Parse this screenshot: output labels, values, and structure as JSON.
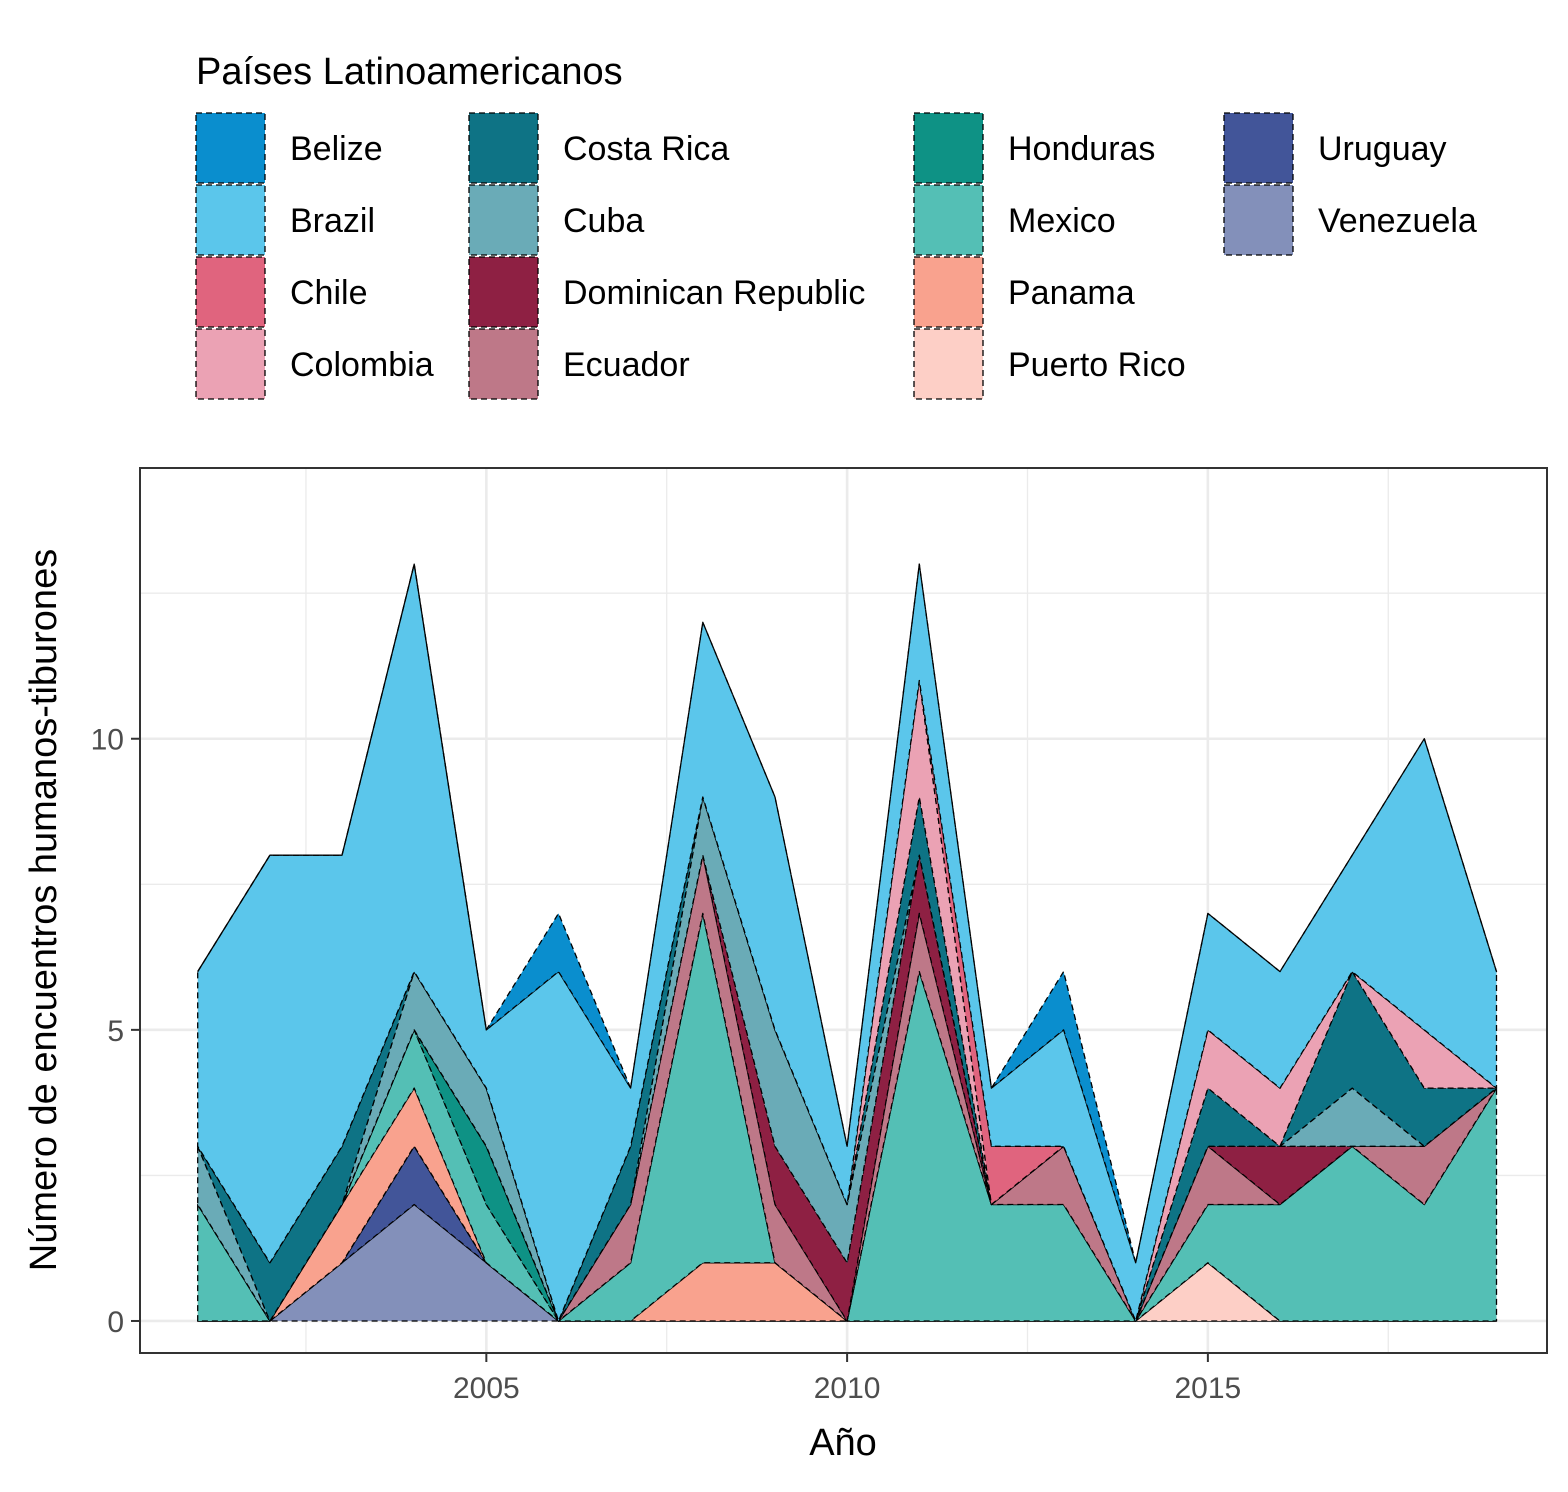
{
  "chart_data": {
    "type": "area",
    "stacked": true,
    "title": "",
    "xlabel": "Año",
    "ylabel": "Número de encuentros humanos-tiburones",
    "legend_title": "Países Latinoamericanos",
    "legend_position": "top",
    "grid": true,
    "xlim": [
      2000.2,
      2019.7
    ],
    "ylim": [
      -0.55,
      14.65
    ],
    "x_ticks": [
      2005,
      2010,
      2015
    ],
    "y_ticks": [
      0,
      5,
      10
    ],
    "x": [
      2001,
      2002,
      2003,
      2004,
      2005,
      2006,
      2007,
      2008,
      2009,
      2010,
      2011,
      2012,
      2013,
      2014,
      2015,
      2016,
      2017,
      2018,
      2019
    ],
    "series": [
      {
        "name": "Belize",
        "color": "#0A8ECE",
        "values": [
          0,
          0,
          0,
          0,
          0,
          1,
          0,
          0,
          0,
          0,
          0,
          0,
          1,
          0,
          0,
          0,
          0,
          0,
          0
        ]
      },
      {
        "name": "Brazil",
        "color": "#5BC6EB",
        "values": [
          3,
          7,
          5,
          7,
          1,
          6,
          1,
          3,
          4,
          1,
          2,
          1,
          2,
          1,
          2,
          2,
          2,
          5,
          2
        ]
      },
      {
        "name": "Chile",
        "color": "#E0647E",
        "values": [
          0,
          0,
          0,
          0,
          0,
          0,
          0,
          0,
          0,
          0,
          0,
          1,
          0,
          0,
          0,
          0,
          0,
          0,
          0
        ]
      },
      {
        "name": "Colombia",
        "color": "#EBA2B4",
        "values": [
          0,
          0,
          0,
          0,
          0,
          0,
          0,
          0,
          0,
          0,
          2,
          0,
          0,
          0,
          1,
          1,
          0,
          1,
          0
        ]
      },
      {
        "name": "Costa Rica",
        "color": "#0E7385",
        "values": [
          0,
          1,
          1,
          0,
          0,
          0,
          1,
          0,
          0,
          0,
          1,
          0,
          0,
          0,
          1,
          0,
          2,
          1,
          0
        ]
      },
      {
        "name": "Cuba",
        "color": "#6AABB7",
        "values": [
          1,
          0,
          0,
          1,
          1,
          0,
          0,
          1,
          2,
          1,
          0,
          0,
          0,
          0,
          0,
          0,
          1,
          0,
          0
        ]
      },
      {
        "name": "Dominican Republic",
        "color": "#8E2043",
        "values": [
          0,
          0,
          0,
          0,
          0,
          0,
          0,
          0,
          1,
          1,
          1,
          0,
          0,
          0,
          0,
          1,
          0,
          0,
          0
        ]
      },
      {
        "name": "Ecuador",
        "color": "#BE7888",
        "values": [
          0,
          0,
          0,
          0,
          0,
          0,
          1,
          1,
          1,
          0,
          1,
          0,
          1,
          0,
          1,
          0,
          0,
          1,
          0
        ]
      },
      {
        "name": "Honduras",
        "color": "#0E9285",
        "values": [
          0,
          0,
          0,
          0,
          1,
          0,
          0,
          0,
          0,
          0,
          0,
          0,
          0,
          0,
          0,
          0,
          0,
          0,
          0
        ]
      },
      {
        "name": "Mexico",
        "color": "#54BFB5",
        "values": [
          2,
          0,
          0,
          1,
          1,
          0,
          1,
          6,
          0,
          0,
          6,
          2,
          2,
          0,
          1,
          2,
          3,
          2,
          4
        ]
      },
      {
        "name": "Panama",
        "color": "#F9A28E",
        "values": [
          0,
          0,
          1,
          1,
          0,
          0,
          0,
          1,
          1,
          0,
          0,
          0,
          0,
          0,
          0,
          0,
          0,
          0,
          0
        ]
      },
      {
        "name": "Puerto Rico",
        "color": "#FDCFC6",
        "values": [
          0,
          0,
          0,
          0,
          0,
          0,
          0,
          0,
          0,
          0,
          0,
          0,
          0,
          0,
          1,
          0,
          0,
          0,
          0
        ]
      },
      {
        "name": "Uruguay",
        "color": "#425599",
        "values": [
          0,
          0,
          0,
          1,
          0,
          0,
          0,
          0,
          0,
          0,
          0,
          0,
          0,
          0,
          0,
          0,
          0,
          0,
          0
        ]
      },
      {
        "name": "Venezuela",
        "color": "#8390BA",
        "values": [
          0,
          0,
          1,
          2,
          1,
          0,
          0,
          0,
          0,
          0,
          0,
          0,
          0,
          0,
          0,
          0,
          0,
          0,
          0
        ]
      }
    ]
  }
}
